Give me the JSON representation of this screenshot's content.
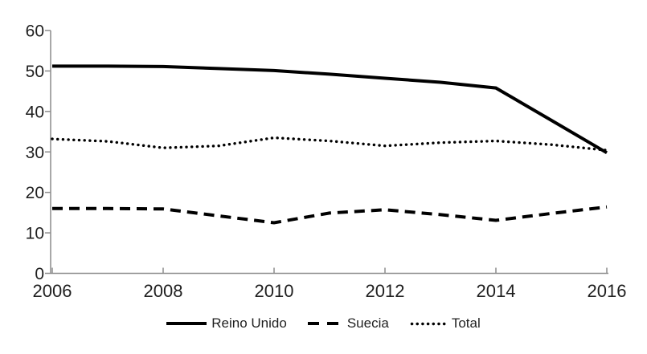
{
  "chart_data": {
    "type": "line",
    "title": "",
    "xlabel": "",
    "ylabel": "",
    "x": [
      2006,
      2007,
      2008,
      2009,
      2010,
      2011,
      2012,
      2013,
      2014,
      2015,
      2016
    ],
    "xticks": [
      2006,
      2008,
      2010,
      2012,
      2014,
      2016
    ],
    "yticks": [
      0,
      10,
      20,
      30,
      40,
      50,
      60
    ],
    "xlim": [
      2006,
      2016
    ],
    "ylim": [
      0,
      60
    ],
    "grid": false,
    "legend_position": "bottom",
    "series": [
      {
        "name": "Reino Unido",
        "style": "solid",
        "values": [
          51.2,
          51.2,
          51.1,
          50.6,
          50.1,
          49.2,
          48.2,
          47.2,
          45.8,
          37.8,
          29.8
        ]
      },
      {
        "name": "Suecia",
        "style": "dashed",
        "values": [
          16.0,
          16.0,
          15.9,
          14.2,
          12.5,
          14.9,
          15.7,
          14.5,
          13.1,
          14.8,
          16.4
        ]
      },
      {
        "name": "Total",
        "style": "dotted",
        "values": [
          33.2,
          32.6,
          31.0,
          31.5,
          33.5,
          32.7,
          31.5,
          32.3,
          32.7,
          31.8,
          30.4
        ]
      }
    ],
    "colors": {
      "line": "#000000",
      "axis": "#8c8c8c",
      "text": "#1f1f1f",
      "background": "#ffffff"
    }
  }
}
